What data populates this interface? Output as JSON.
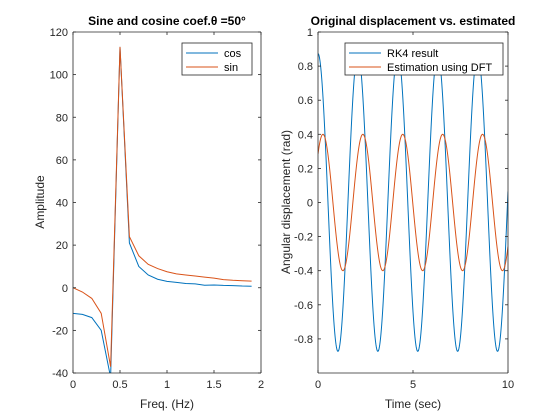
{
  "chart_data": [
    {
      "type": "line",
      "title": "Sine and cosine coef.θ =50°",
      "xlabel": "Freq. (Hz)",
      "ylabel": "Amplitude",
      "xlim": [
        0,
        2
      ],
      "ylim": [
        -40,
        120
      ],
      "xticks": [
        0,
        0.5,
        1,
        1.5,
        2
      ],
      "xtick_labels": [
        "0",
        "0.5",
        "1",
        "1.5",
        "2"
      ],
      "yticks": [
        -40,
        -20,
        0,
        20,
        40,
        60,
        80,
        100,
        120
      ],
      "ytick_labels": [
        "-40",
        "-20",
        "0",
        "20",
        "40",
        "60",
        "80",
        "100",
        "120"
      ],
      "grid": false,
      "legend_position": "top-right",
      "series": [
        {
          "name": "cos",
          "color": "#0072BD",
          "x": [
            0,
            0.1,
            0.2,
            0.3,
            0.4,
            0.5,
            0.6,
            0.7,
            0.8,
            0.9,
            1.0,
            1.1,
            1.2,
            1.3,
            1.4,
            1.5,
            1.6,
            1.7,
            1.8,
            1.9
          ],
          "y": [
            -12,
            -12.5,
            -14,
            -20,
            -42,
            113,
            21,
            10,
            6,
            4,
            3,
            2.5,
            2,
            1.8,
            1.2,
            1.3,
            1.1,
            1,
            0.8,
            0.7
          ]
        },
        {
          "name": "sin",
          "color": "#D95319",
          "x": [
            0,
            0.1,
            0.2,
            0.3,
            0.4,
            0.5,
            0.6,
            0.7,
            0.8,
            0.9,
            1.0,
            1.1,
            1.2,
            1.3,
            1.4,
            1.5,
            1.6,
            1.7,
            1.8,
            1.9
          ],
          "y": [
            0,
            -2,
            -5,
            -12,
            -37,
            113,
            24,
            15,
            11,
            9,
            7.5,
            6.5,
            6,
            5.5,
            5,
            4.5,
            3.8,
            3.5,
            3.3,
            3.1
          ]
        }
      ]
    },
    {
      "type": "line",
      "title": "Original displacement vs. estimated",
      "xlabel": "Time (sec)",
      "ylabel": "Angular displacement (rad)",
      "xlim": [
        0,
        10
      ],
      "ylim": [
        -1,
        1
      ],
      "xticks": [
        0,
        5,
        10
      ],
      "xtick_labels": [
        "0",
        "5",
        "10"
      ],
      "yticks": [
        -0.8,
        -0.6,
        -0.4,
        -0.2,
        0,
        0.2,
        0.4,
        0.6,
        0.8,
        1
      ],
      "ytick_labels": [
        "-0.8",
        "-0.6",
        "-0.4",
        "-0.2",
        "0",
        "0.2",
        "0.4",
        "0.6",
        "0.8",
        "1"
      ],
      "grid": false,
      "legend_position": "top",
      "series": [
        {
          "name": "RK4 result",
          "color": "#0072BD",
          "amplitude": 0.873,
          "period": 2.1
        },
        {
          "name": "Estimation using DFT",
          "color": "#D95319",
          "amplitude": 0.4,
          "period": 2.1,
          "phase_shift": 0.26
        }
      ]
    }
  ]
}
